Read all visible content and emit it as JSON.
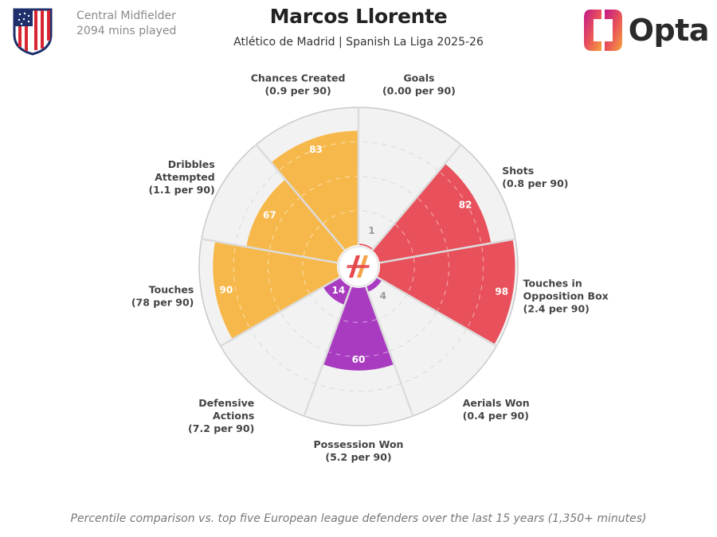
{
  "header": {
    "position": "Central Midfielder",
    "minutes": "2094 mins played",
    "player_name": "Marcos Llorente",
    "subtitle": "Atlético de Madrid | Spanish La Liga 2025-26",
    "brand": "Opta",
    "crest_icon": "atletico-madrid-crest-icon",
    "brand_icon": "opta-logo-icon"
  },
  "colors": {
    "possession": "#f7b84b",
    "attacking": "#e8505b",
    "defending": "#a93bc0",
    "background_slice": "#f2f2f2",
    "divider": "#dcdcdc",
    "center_logo_red": "#e5484d",
    "center_logo_orange": "#f5a44b"
  },
  "chart_data": {
    "type": "radar",
    "scale": "percentile",
    "range": [
      0,
      100
    ],
    "grid": true,
    "center_ring_values": [
      "1",
      "4"
    ],
    "metrics": [
      {
        "name": "Goals",
        "sublabel": "(0.00 per 90)",
        "percentile": 1,
        "value_label": "",
        "group": "attacking"
      },
      {
        "name": "Shots",
        "sublabel": "(0.8 per 90)",
        "percentile": 82,
        "value_label": "82",
        "group": "attacking"
      },
      {
        "name": "Touches in Opposition Box",
        "sublabel": "(2.4 per 90)",
        "percentile": 98,
        "value_label": "98",
        "group": "attacking"
      },
      {
        "name": "Aerials Won",
        "sublabel": "(0.4 per 90)",
        "percentile": 4,
        "value_label": "",
        "group": "defending"
      },
      {
        "name": "Possession Won",
        "sublabel": "(5.2 per 90)",
        "percentile": 60,
        "value_label": "60",
        "group": "defending"
      },
      {
        "name": "Defensive Actions",
        "sublabel": "(7.2 per 90)",
        "percentile": 14,
        "value_label": "14",
        "group": "defending"
      },
      {
        "name": "Touches",
        "sublabel": "(78 per 90)",
        "percentile": 90,
        "value_label": "90",
        "group": "possession"
      },
      {
        "name": "Dribbles Attempted",
        "sublabel": "(1.1 per 90)",
        "percentile": 67,
        "value_label": "67",
        "group": "possession"
      },
      {
        "name": "Chances Created",
        "sublabel": "(0.9 per 90)",
        "percentile": 83,
        "value_label": "83",
        "group": "possession"
      }
    ],
    "label_lines": [
      [
        "Goals",
        "(0.00 per 90)"
      ],
      [
        "Shots",
        "(0.8 per 90)"
      ],
      [
        "Touches in",
        "Opposition Box",
        "(2.4 per 90)"
      ],
      [
        "Aerials Won",
        "(0.4 per 90)"
      ],
      [
        "Possession Won",
        "(5.2 per 90)"
      ],
      [
        "Defensive",
        "Actions",
        "(7.2 per 90)"
      ],
      [
        "Touches",
        "(78 per 90)"
      ],
      [
        "Dribbles",
        "Attempted",
        "(1.1 per 90)"
      ],
      [
        "Chances Created",
        "(0.9 per 90)"
      ]
    ]
  },
  "footnote": "Percentile comparison vs. top five European league defenders over the last 15 years (1,350+ minutes)"
}
